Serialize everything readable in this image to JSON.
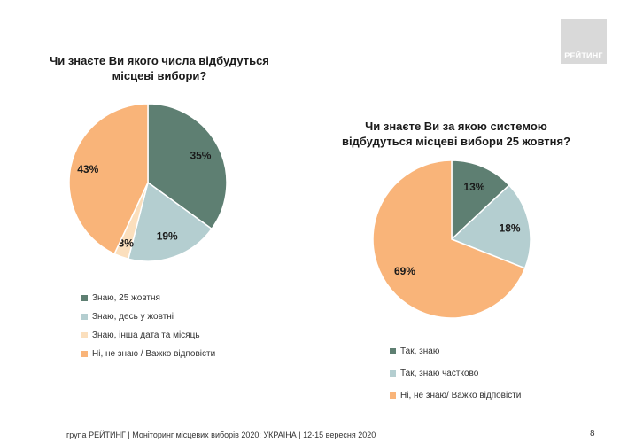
{
  "logo": {
    "text": "РЕЙТИНГ"
  },
  "colors": {
    "dark": "#5e7f72",
    "light": "#b4ced0",
    "pale": "#fbdfbd",
    "orange": "#f9b479"
  },
  "chart_data": [
    {
      "type": "pie",
      "title_line1": "Чи знаєте Ви якого числа відбудуться",
      "title_line2": "місцеві вибори?",
      "slices": [
        {
          "label": "Знаю, 25 жовтня",
          "value": 35,
          "value_label": "35%",
          "color": "#5e7f72"
        },
        {
          "label": "Знаю, десь у жовтні",
          "value": 19,
          "value_label": "19%",
          "color": "#b4ced0"
        },
        {
          "label": "Знаю, інша дата та місяць",
          "value": 3,
          "value_label": "3%",
          "color": "#fbdfbd"
        },
        {
          "label": "Ні, не знаю / Важко відповісти",
          "value": 43,
          "value_label": "43%",
          "color": "#f9b479"
        }
      ],
      "legend_position": "bottom"
    },
    {
      "type": "pie",
      "title_line1": "Чи знаєте Ви за якою системою",
      "title_line2": "відбудуться місцеві вибори 25 жовтня?",
      "slices": [
        {
          "label": "Так, знаю",
          "value": 13,
          "value_label": "13%",
          "color": "#5e7f72"
        },
        {
          "label": "Так, знаю частково",
          "value": 18,
          "value_label": "18%",
          "color": "#b4ced0"
        },
        {
          "label": "Ні, не знаю/ Важко відповісти",
          "value": 69,
          "value_label": "69%",
          "color": "#f9b479"
        }
      ],
      "legend_position": "bottom"
    }
  ],
  "footer": {
    "text": "група РЕЙТИНГ | Моніторинг місцевих виборів 2020: УКРАЇНА | 12-15 вересня 2020",
    "page_number": "8"
  }
}
